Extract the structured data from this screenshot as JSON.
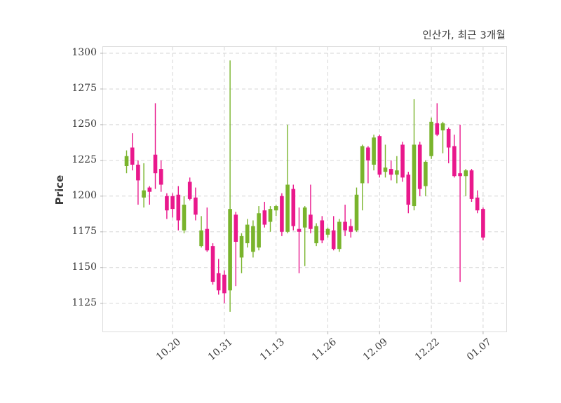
{
  "chart": {
    "title": "인산가, 최근 3개월",
    "ylabel": "Price"
  },
  "chart_data": {
    "type": "candlestick",
    "title": "인산가, 최근 3개월",
    "xlabel": "",
    "ylabel": "Price",
    "y_ticks": [
      1125,
      1150,
      1175,
      1200,
      1225,
      1250,
      1275,
      1300
    ],
    "ylim": [
      1105,
      1304
    ],
    "grid": true,
    "grid_style": "dashed",
    "x_tick_labels": [
      "10.20",
      "10.31",
      "11.13",
      "11.26",
      "12.09",
      "12.22",
      "01.07"
    ],
    "x_tick_candle_indices": [
      8,
      17,
      26,
      35,
      44,
      53,
      62
    ],
    "n_candles": 63,
    "colors": {
      "up": "#79b42c",
      "down": "#e9188c",
      "grid": "#d6d6d6",
      "spine": "#dcdcdc",
      "axis_text": "#3b3b3b",
      "background": "#ffffff"
    },
    "ohlc_columns": [
      "open",
      "high",
      "low",
      "close"
    ],
    "candles": [
      [
        1221,
        1232,
        1216,
        1228
      ],
      [
        1234,
        1244,
        1218,
        1222
      ],
      [
        1222,
        1225,
        1194,
        1211
      ],
      [
        1199,
        1223,
        1192,
        1204
      ],
      [
        1206,
        1207,
        1194,
        1203
      ],
      [
        1229,
        1265,
        1205,
        1216
      ],
      [
        1219,
        1225,
        1203,
        1208
      ],
      [
        1200,
        1202,
        1184,
        1190
      ],
      [
        1200,
        1202,
        1185,
        1191
      ],
      [
        1201,
        1207,
        1176,
        1183
      ],
      [
        1176,
        1200,
        1174,
        1194
      ],
      [
        1210,
        1213,
        1197,
        1198
      ],
      [
        1199,
        1206,
        1183,
        1187
      ],
      [
        1165,
        1186,
        1164,
        1176
      ],
      [
        1177,
        1192,
        1161,
        1162
      ],
      [
        1165,
        1167,
        1138,
        1140
      ],
      [
        1146,
        1156,
        1131,
        1134
      ],
      [
        1145,
        1148,
        1125,
        1132
      ],
      [
        1134,
        1295,
        1119,
        1191
      ],
      [
        1187,
        1189,
        1137,
        1168
      ],
      [
        1157,
        1174,
        1146,
        1172
      ],
      [
        1167,
        1184,
        1164,
        1180
      ],
      [
        1161,
        1183,
        1157,
        1179
      ],
      [
        1164,
        1193,
        1162,
        1188
      ],
      [
        1190,
        1196,
        1178,
        1180
      ],
      [
        1182,
        1193,
        1175,
        1191
      ],
      [
        1190,
        1194,
        1186,
        1193
      ],
      [
        1200,
        1202,
        1172,
        1175
      ],
      [
        1175,
        1250,
        1174,
        1208
      ],
      [
        1205,
        1208,
        1176,
        1179
      ],
      [
        1177,
        1192,
        1146,
        1175
      ],
      [
        1178,
        1193,
        1151,
        1192
      ],
      [
        1187,
        1208,
        1174,
        1177
      ],
      [
        1167,
        1181,
        1165,
        1179
      ],
      [
        1183,
        1186,
        1167,
        1169
      ],
      [
        1173,
        1178,
        1171,
        1177
      ],
      [
        1176,
        1186,
        1162,
        1163
      ],
      [
        1163,
        1184,
        1161,
        1182
      ],
      [
        1182,
        1194,
        1172,
        1176
      ],
      [
        1179,
        1184,
        1171,
        1175
      ],
      [
        1176,
        1206,
        1175,
        1201
      ],
      [
        1209,
        1236,
        1190,
        1235
      ],
      [
        1234,
        1235,
        1209,
        1225
      ],
      [
        1222,
        1243,
        1218,
        1241
      ],
      [
        1242,
        1243,
        1213,
        1215
      ],
      [
        1217,
        1236,
        1213,
        1220
      ],
      [
        1219,
        1225,
        1211,
        1215
      ],
      [
        1215,
        1228,
        1209,
        1218
      ],
      [
        1236,
        1238,
        1210,
        1213
      ],
      [
        1215,
        1217,
        1188,
        1194
      ],
      [
        1193,
        1268,
        1190,
        1236
      ],
      [
        1236,
        1238,
        1200,
        1205
      ],
      [
        1207,
        1225,
        1200,
        1224
      ],
      [
        1228,
        1255,
        1226,
        1252
      ],
      [
        1251,
        1265,
        1242,
        1243
      ],
      [
        1246,
        1252,
        1230,
        1251
      ],
      [
        1247,
        1248,
        1223,
        1234
      ],
      [
        1235,
        1243,
        1213,
        1214
      ],
      [
        1216,
        1250,
        1140,
        1214
      ],
      [
        1214,
        1219,
        1200,
        1218
      ],
      [
        1218,
        1219,
        1196,
        1198
      ],
      [
        1199,
        1204,
        1188,
        1190
      ],
      [
        1191,
        1192,
        1169,
        1171
      ]
    ]
  }
}
